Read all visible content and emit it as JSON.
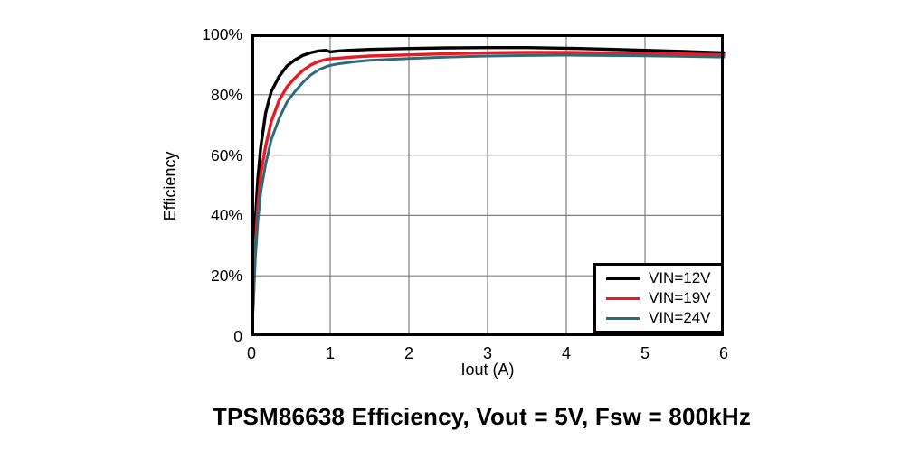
{
  "chart_data": {
    "type": "line",
    "title": "TPSM86638 Efficiency, Vout = 5V, Fsw = 800kHz",
    "xlabel": "Iout (A)",
    "ylabel": "Efficiency",
    "xlim": [
      0,
      6
    ],
    "ylim": [
      0,
      100
    ],
    "grid": true,
    "x_tick_values": [
      0,
      1,
      2,
      3,
      4,
      5,
      6
    ],
    "x_tick_labels": [
      "0",
      "1",
      "2",
      "3",
      "4",
      "5",
      "6"
    ],
    "y_tick_values": [
      0,
      20,
      40,
      60,
      80,
      100
    ],
    "y_tick_labels": [
      "0",
      "20%",
      "40%",
      "60%",
      "80%",
      "100%"
    ],
    "x_gridlines": [
      1,
      2,
      3,
      4,
      5
    ],
    "y_gridlines": [
      20,
      40,
      60,
      80
    ],
    "legend_position": "lower right",
    "grid_color": "#7f7f7f",
    "border_color": "#000000",
    "x": [
      0.02,
      0.05,
      0.08,
      0.12,
      0.18,
      0.25,
      0.35,
      0.45,
      0.55,
      0.65,
      0.75,
      0.85,
      0.95,
      1.0,
      1.1,
      1.3,
      1.5,
      2.0,
      2.5,
      3.0,
      3.5,
      4.0,
      4.5,
      5.0,
      5.5,
      6.0
    ],
    "series": [
      {
        "name": "VIN=12V",
        "color": "#000000",
        "stroke_width": 3.4,
        "values": [
          10,
          38,
          52,
          63,
          74,
          81,
          86,
          89.5,
          91.5,
          93,
          93.9,
          94.5,
          94.7,
          94.2,
          94.5,
          94.8,
          95.0,
          95.3,
          95.5,
          95.6,
          95.6,
          95.4,
          95.1,
          94.7,
          94.3,
          93.9
        ]
      },
      {
        "name": "VIN=19V",
        "color": "#e81b22",
        "stroke_width": 3.4,
        "values": [
          9,
          30,
          43,
          54,
          63,
          71,
          78,
          82.5,
          85.5,
          88,
          89.8,
          91,
          91.7,
          91.9,
          92.1,
          92.5,
          92.8,
          93.2,
          93.6,
          93.9,
          94.0,
          94.0,
          93.9,
          93.7,
          93.5,
          93.2
        ]
      },
      {
        "name": "VIN=24V",
        "color": "#2e6b7a",
        "stroke_width": 3.0,
        "values": [
          8,
          26,
          38,
          48,
          57,
          65,
          72,
          77.5,
          81,
          84,
          86.5,
          88.2,
          89.3,
          89.7,
          90.2,
          90.9,
          91.4,
          92.0,
          92.5,
          92.8,
          93.0,
          93.1,
          93.0,
          92.9,
          92.7,
          92.5
        ]
      }
    ]
  }
}
